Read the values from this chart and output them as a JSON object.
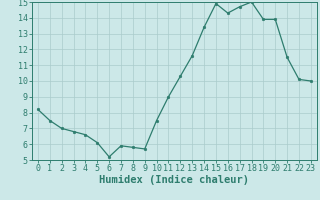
{
  "x": [
    0,
    1,
    2,
    3,
    4,
    5,
    6,
    7,
    8,
    9,
    10,
    11,
    12,
    13,
    14,
    15,
    16,
    17,
    18,
    19,
    20,
    21,
    22,
    23
  ],
  "y": [
    8.2,
    7.5,
    7.0,
    6.8,
    6.6,
    6.1,
    5.2,
    5.9,
    5.8,
    5.7,
    7.5,
    9.0,
    10.3,
    11.6,
    13.4,
    14.9,
    14.3,
    14.7,
    15.0,
    13.9,
    13.9,
    11.5,
    10.1,
    10.0
  ],
  "line_color": "#2e7d6e",
  "marker": "o",
  "marker_size": 2.0,
  "bg_color": "#cce8e8",
  "grid_color": "#aacccc",
  "xlabel": "Humidex (Indice chaleur)",
  "xlabel_fontsize": 7.5,
  "tick_fontsize": 6.0,
  "ylim": [
    5,
    15
  ],
  "xlim": [
    -0.5,
    23.5
  ],
  "yticks": [
    5,
    6,
    7,
    8,
    9,
    10,
    11,
    12,
    13,
    14,
    15
  ],
  "xticks": [
    0,
    1,
    2,
    3,
    4,
    5,
    6,
    7,
    8,
    9,
    10,
    11,
    12,
    13,
    14,
    15,
    16,
    17,
    18,
    19,
    20,
    21,
    22,
    23
  ]
}
